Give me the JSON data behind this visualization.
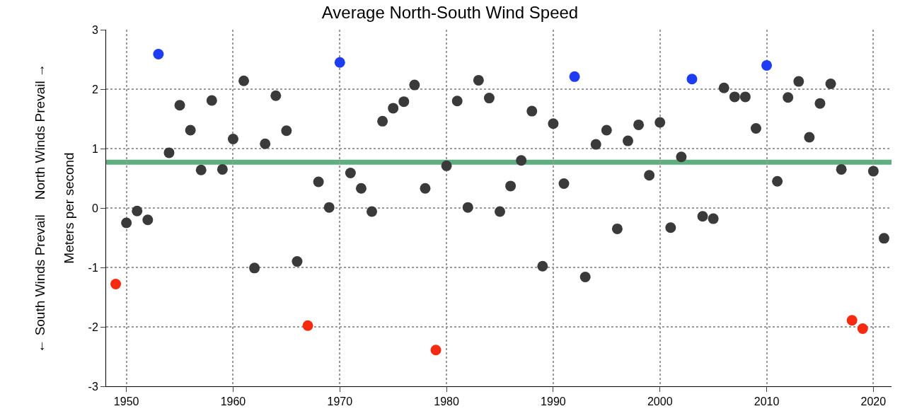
{
  "chart_data": {
    "type": "scatter",
    "title": "Average North-South Wind Speed",
    "ylabel": "Meters per second",
    "annotations": [
      "← South Winds Prevail    North Winds Prevail →"
    ],
    "xlim": [
      1948.1,
      2021.7
    ],
    "xticks": [
      1950,
      1960,
      1970,
      1980,
      1990,
      2000,
      2010,
      2020
    ],
    "ylim": [
      -3,
      3
    ],
    "yticks": [
      -3,
      -2,
      -1,
      0,
      1,
      2,
      3
    ],
    "grid": true,
    "marker": "circle",
    "ref_lines": [
      {
        "axis": "y",
        "value": 0.77,
        "color": "#5fae80"
      }
    ],
    "series": [
      {
        "color": "#3a3a3a",
        "x": [
          1950,
          1951,
          1952,
          1954,
          1955,
          1956,
          1957,
          1958,
          1959,
          1960,
          1961,
          1962,
          1963,
          1964,
          1965,
          1966,
          1968,
          1969,
          1971,
          1972,
          1973,
          1974,
          1975,
          1976,
          1977,
          1978,
          1980,
          1981,
          1982,
          1983,
          1984,
          1985,
          1986,
          1987,
          1988,
          1989,
          1990,
          1991,
          1993,
          1994,
          1995,
          1996,
          1997,
          1998,
          1999,
          2000,
          2001,
          2002,
          2004,
          2005,
          2006,
          2007,
          2008,
          2009,
          2011,
          2012,
          2013,
          2014,
          2015,
          2016,
          2017,
          2020,
          2021
        ],
        "values": [
          -0.25,
          -0.05,
          -0.2,
          0.93,
          1.73,
          1.31,
          0.64,
          1.81,
          0.65,
          1.16,
          2.14,
          -1.01,
          1.08,
          1.89,
          1.3,
          -0.9,
          0.44,
          0.01,
          0.59,
          0.33,
          -0.06,
          1.46,
          1.68,
          1.79,
          2.07,
          0.33,
          0.71,
          1.8,
          0.01,
          2.15,
          1.85,
          -0.06,
          0.37,
          0.8,
          1.63,
          -0.98,
          1.42,
          0.41,
          -1.16,
          1.07,
          1.31,
          -0.35,
          1.13,
          1.4,
          0.55,
          1.44,
          -0.33,
          0.86,
          -0.14,
          -0.18,
          2.02,
          1.87,
          1.87,
          1.34,
          0.45,
          1.86,
          2.13,
          1.19,
          1.76,
          2.09,
          0.65,
          0.62,
          -0.51
        ]
      },
      {
        "color": "#1f3cf5",
        "x": [
          1953,
          1970,
          1992,
          2003,
          2010
        ],
        "values": [
          2.59,
          2.45,
          2.21,
          2.17,
          2.4
        ]
      },
      {
        "color": "#f52a10",
        "x": [
          1949,
          1967,
          1979,
          2018,
          2019
        ],
        "values": [
          -1.28,
          -1.98,
          -2.39,
          -1.89,
          -2.03
        ]
      }
    ]
  }
}
